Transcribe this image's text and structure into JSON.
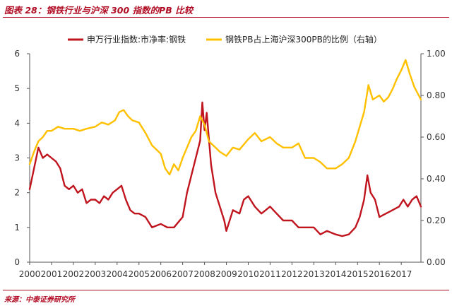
{
  "figure": {
    "title": "图表 28：钢铁行业与沪深 300 指数的PB 比较",
    "source": "来源：中泰证券研究所"
  },
  "chart_data": {
    "type": "line",
    "title": "",
    "xlabel": "",
    "ylabel": "",
    "x_tick_labels": [
      "2000",
      "2001",
      "2002",
      "2003",
      "2004",
      "2005",
      "2006",
      "2007",
      "2008",
      "2009",
      "2010",
      "2011",
      "2012",
      "2013",
      "2014",
      "2015",
      "2016",
      "2017"
    ],
    "xlim": [
      2000,
      2017.9
    ],
    "ylim_left": [
      0,
      6
    ],
    "yticks_left": [
      "0",
      "1",
      "2",
      "3",
      "4",
      "5",
      "6"
    ],
    "ylim_right": [
      0,
      1
    ],
    "yticks_right": [
      "0.00",
      "0.20",
      "0.40",
      "0.60",
      "0.80",
      "1.00"
    ],
    "grid": false,
    "legend_position": "top",
    "series": [
      {
        "name": "申万行业指数:市净率:钢铁",
        "axis": "left",
        "color": "#c0141e",
        "x": [
          2000.0,
          2000.2,
          2000.4,
          2000.6,
          2000.8,
          2001.0,
          2001.2,
          2001.4,
          2001.6,
          2001.8,
          2002.0,
          2002.2,
          2002.4,
          2002.6,
          2002.8,
          2003.0,
          2003.2,
          2003.4,
          2003.6,
          2003.8,
          2004.0,
          2004.2,
          2004.4,
          2004.6,
          2004.8,
          2005.0,
          2005.3,
          2005.6,
          2006.0,
          2006.3,
          2006.6,
          2007.0,
          2007.2,
          2007.4,
          2007.6,
          2007.8,
          2007.9,
          2008.0,
          2008.1,
          2008.3,
          2008.5,
          2008.7,
          2008.9,
          2009.0,
          2009.3,
          2009.6,
          2009.8,
          2010.0,
          2010.3,
          2010.6,
          2010.8,
          2011.0,
          2011.3,
          2011.6,
          2012.0,
          2012.3,
          2012.6,
          2013.0,
          2013.3,
          2013.6,
          2014.0,
          2014.3,
          2014.6,
          2014.9,
          2015.1,
          2015.3,
          2015.45,
          2015.6,
          2015.8,
          2016.0,
          2016.3,
          2016.6,
          2016.9,
          2017.1,
          2017.3,
          2017.5,
          2017.7,
          2017.9
        ],
        "y": [
          2.1,
          2.7,
          3.3,
          3.0,
          3.1,
          3.0,
          2.9,
          2.7,
          2.2,
          2.1,
          2.2,
          2.0,
          2.1,
          1.7,
          1.8,
          1.8,
          1.7,
          1.9,
          1.8,
          2.0,
          2.1,
          2.2,
          1.8,
          1.5,
          1.4,
          1.4,
          1.3,
          1.0,
          1.1,
          1.0,
          1.0,
          1.3,
          2.0,
          2.5,
          3.0,
          3.5,
          4.6,
          3.8,
          4.3,
          2.8,
          2.0,
          1.6,
          1.2,
          0.9,
          1.5,
          1.4,
          1.8,
          1.9,
          1.6,
          1.4,
          1.5,
          1.6,
          1.4,
          1.2,
          1.2,
          1.0,
          1.0,
          1.0,
          0.8,
          0.9,
          0.8,
          0.75,
          0.8,
          1.0,
          1.3,
          1.8,
          2.5,
          2.0,
          1.8,
          1.3,
          1.4,
          1.5,
          1.6,
          1.8,
          1.6,
          1.8,
          1.9,
          1.6
        ]
      },
      {
        "name": "钢铁PB占上海沪深300PB的比例（右轴）",
        "axis": "right",
        "color": "#ffc000",
        "x": [
          2000.0,
          2000.2,
          2000.4,
          2000.6,
          2000.8,
          2001.0,
          2001.3,
          2001.6,
          2002.0,
          2002.3,
          2002.6,
          2003.0,
          2003.3,
          2003.6,
          2003.9,
          2004.1,
          2004.3,
          2004.5,
          2004.7,
          2005.0,
          2005.3,
          2005.6,
          2006.0,
          2006.2,
          2006.4,
          2006.6,
          2006.8,
          2007.0,
          2007.2,
          2007.4,
          2007.6,
          2007.8,
          2008.0,
          2008.2,
          2008.5,
          2008.7,
          2009.0,
          2009.3,
          2009.6,
          2010.0,
          2010.3,
          2010.6,
          2011.0,
          2011.3,
          2011.6,
          2012.0,
          2012.3,
          2012.6,
          2013.0,
          2013.3,
          2013.6,
          2014.0,
          2014.3,
          2014.6,
          2014.9,
          2015.1,
          2015.3,
          2015.5,
          2015.7,
          2016.0,
          2016.2,
          2016.4,
          2016.6,
          2016.8,
          2017.0,
          2017.2,
          2017.4,
          2017.6,
          2017.8,
          2017.9
        ],
        "y": [
          0.47,
          0.53,
          0.58,
          0.6,
          0.63,
          0.63,
          0.65,
          0.64,
          0.64,
          0.63,
          0.64,
          0.65,
          0.67,
          0.66,
          0.68,
          0.72,
          0.73,
          0.7,
          0.68,
          0.67,
          0.62,
          0.56,
          0.52,
          0.45,
          0.42,
          0.47,
          0.44,
          0.5,
          0.55,
          0.6,
          0.63,
          0.7,
          0.66,
          0.58,
          0.55,
          0.53,
          0.51,
          0.55,
          0.54,
          0.59,
          0.62,
          0.58,
          0.6,
          0.57,
          0.55,
          0.55,
          0.57,
          0.5,
          0.5,
          0.48,
          0.45,
          0.45,
          0.47,
          0.5,
          0.58,
          0.65,
          0.72,
          0.85,
          0.78,
          0.8,
          0.77,
          0.79,
          0.83,
          0.88,
          0.92,
          0.97,
          0.9,
          0.84,
          0.8,
          0.78
        ]
      }
    ]
  }
}
